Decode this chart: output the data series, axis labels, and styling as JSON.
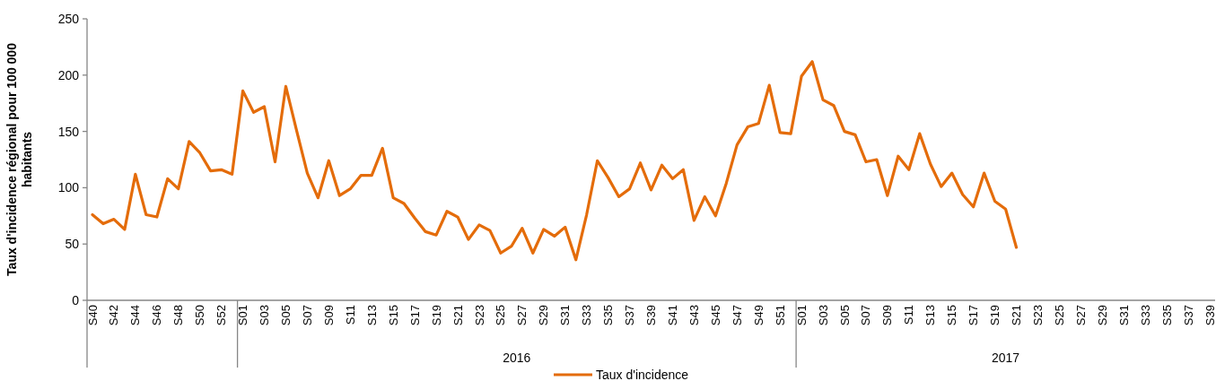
{
  "chart_data": {
    "type": "line",
    "ylabel": "Taux d'incidence régional pour 100 000 habitants",
    "categories": [
      "S40",
      null,
      "S42",
      null,
      "S44",
      null,
      "S46",
      null,
      "S48",
      null,
      "S50",
      null,
      "S52",
      null,
      "S01",
      null,
      "S03",
      null,
      "S05",
      null,
      "S07",
      null,
      "S09",
      null,
      "S11",
      null,
      "S13",
      null,
      "S15",
      null,
      "S17",
      null,
      "S19",
      null,
      "S21",
      null,
      "S23",
      null,
      "S25",
      null,
      "S27",
      null,
      "S29",
      null,
      "S31",
      null,
      "S33",
      null,
      "S35",
      null,
      "S37",
      null,
      "S39",
      null,
      "S41",
      null,
      "S43",
      null,
      "S45",
      null,
      "S47",
      null,
      "S49",
      null,
      "S51",
      null,
      "S01",
      null,
      "S03",
      null,
      "S05",
      null,
      "S07",
      null,
      "S09",
      null,
      "S11",
      null,
      "S13",
      null,
      "S15",
      null,
      "S17",
      null,
      "S19",
      null,
      "S21",
      null,
      "S23",
      null,
      "S25",
      null,
      "S27",
      null,
      "S29",
      null,
      "S31",
      null,
      "S33",
      null,
      "S35",
      null,
      "S37",
      null,
      "S39"
    ],
    "series": [
      {
        "name": "Taux d'incidence",
        "color": "#e46c0a",
        "values": [
          76,
          68,
          72,
          63,
          112,
          76,
          74,
          108,
          99,
          141,
          131,
          115,
          116,
          112,
          186,
          167,
          172,
          123,
          190,
          151,
          113,
          91,
          124,
          93,
          99,
          111,
          111,
          135,
          91,
          86,
          73,
          61,
          58,
          79,
          74,
          54,
          67,
          62,
          42,
          48,
          64,
          42,
          63,
          57,
          65,
          36,
          76,
          124,
          109,
          92,
          99,
          122,
          98,
          120,
          108,
          116,
          71,
          92,
          75,
          104,
          138,
          154,
          157,
          191,
          149,
          148,
          199,
          212,
          178,
          173,
          150,
          147,
          123,
          125,
          93,
          128,
          116,
          148,
          121,
          101,
          113,
          94,
          83,
          113,
          88,
          81,
          47,
          null,
          null,
          null,
          null,
          null,
          null,
          null,
          null,
          null,
          null,
          null,
          null,
          null,
          null,
          null,
          null,
          null,
          null
        ]
      }
    ],
    "ylim": [
      0,
      250
    ],
    "yticks": [
      0,
      50,
      100,
      150,
      200,
      250
    ],
    "annotations": [
      "2016",
      "2017"
    ],
    "legend": "bottom",
    "marker": "none",
    "line_style": "solid",
    "grid": false
  }
}
